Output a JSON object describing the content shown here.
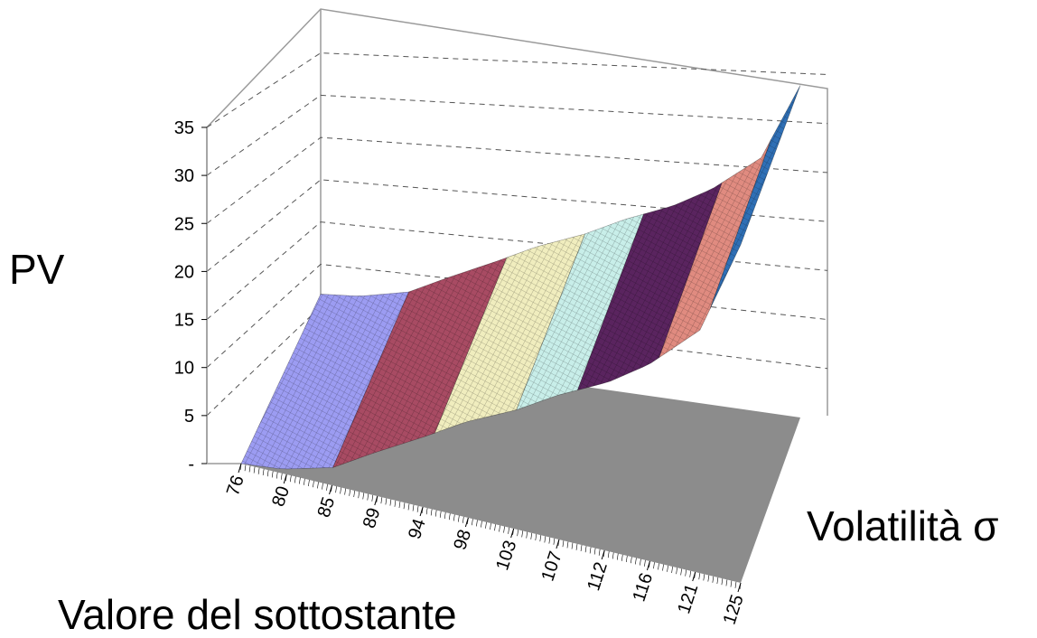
{
  "chart_data": {
    "type": "surface",
    "title": "",
    "zlabel": "PV",
    "xlabel": "Valore del sottostante",
    "ylabel": "Volatilità σ",
    "zlim": [
      0,
      35
    ],
    "z_ticks": [
      "-",
      "5",
      "10",
      "15",
      "20",
      "25",
      "30",
      "35"
    ],
    "x_ticks": [
      "76",
      "80",
      "85",
      "89",
      "94",
      "98",
      "103",
      "107",
      "112",
      "116",
      "121",
      "125"
    ],
    "grid": true,
    "legend": "none",
    "surface_profile": {
      "x": [
        76,
        80,
        85,
        89,
        94,
        98,
        103,
        107,
        112,
        116,
        121,
        125
      ],
      "z": [
        0.0,
        0.4,
        1.7,
        4.0,
        6.7,
        9.0,
        11.3,
        13.6,
        16.0,
        18.6,
        23.0,
        32.0
      ]
    },
    "colors": {
      "band_1": "#9c9cf2",
      "band_2": "#a84b63",
      "band_3": "#f0edbe",
      "band_4": "#c8eee9",
      "band_5": "#5a245f",
      "band_6": "#e08b80",
      "band_7": "#2f6fb5",
      "floor": "#8c8c8c",
      "grid": "#555555",
      "frame": "#9a9a9a"
    }
  }
}
